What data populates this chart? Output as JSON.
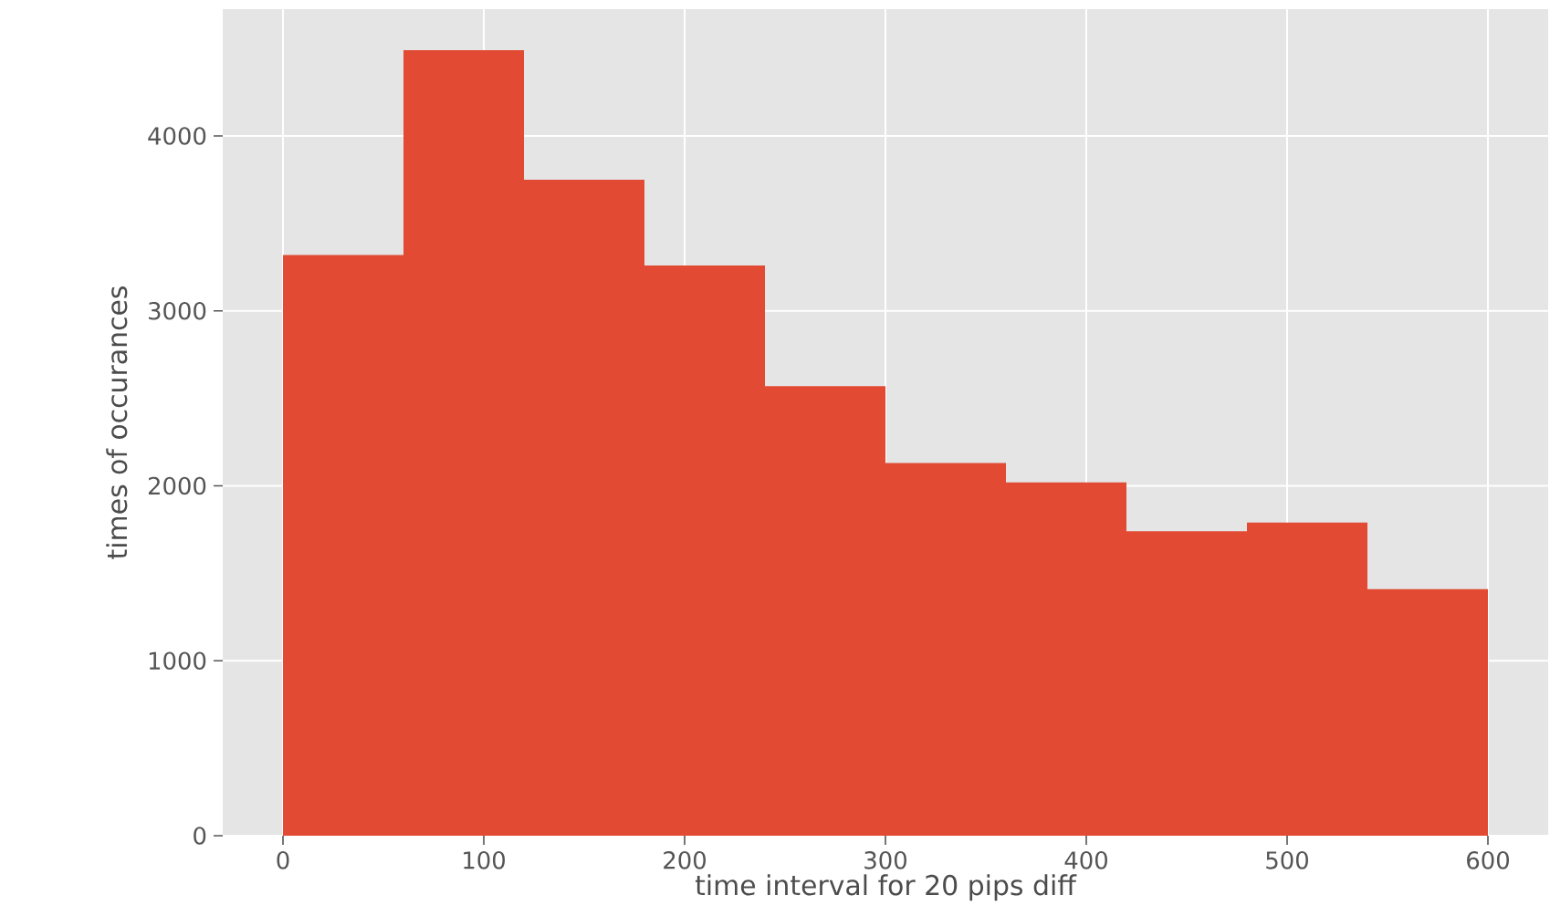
{
  "chart_data": {
    "type": "histogram",
    "xlabel": "time interval for 20 pips diff",
    "ylabel": "times of occurances",
    "bins": [
      0,
      60,
      120,
      180,
      240,
      300,
      360,
      420,
      480,
      540,
      600
    ],
    "values": [
      3320,
      4490,
      3750,
      3260,
      2570,
      2130,
      2020,
      1740,
      1790,
      1410
    ],
    "color": "#e24a33",
    "xlim": [
      -30,
      630
    ],
    "ylim": [
      0,
      4725
    ],
    "xticks": [
      0,
      100,
      200,
      300,
      400,
      500,
      600
    ],
    "yticks": [
      0,
      1000,
      2000,
      3000,
      4000
    ],
    "grid": true
  }
}
